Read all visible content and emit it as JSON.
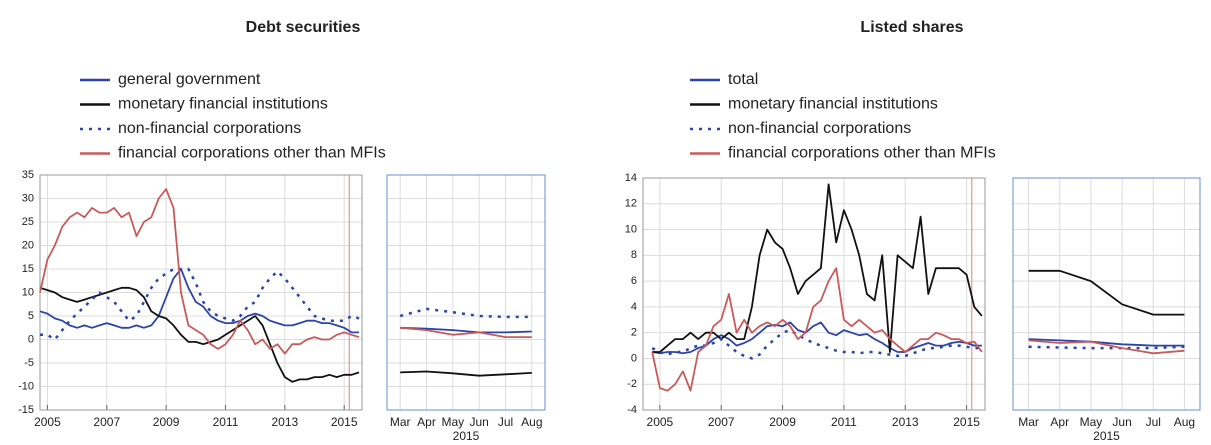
{
  "chart_data": [
    {
      "type": "line",
      "title": "Debt securities",
      "x": [
        2004.75,
        2005,
        2005.25,
        2005.5,
        2005.75,
        2006,
        2006.25,
        2006.5,
        2006.75,
        2007,
        2007.25,
        2007.5,
        2007.75,
        2008,
        2008.25,
        2008.5,
        2008.75,
        2009,
        2009.25,
        2009.5,
        2009.75,
        2010,
        2010.25,
        2010.5,
        2010.75,
        2011,
        2011.25,
        2011.5,
        2011.75,
        2012,
        2012.25,
        2012.5,
        2012.75,
        2013,
        2013.25,
        2013.5,
        2013.75,
        2014,
        2014.25,
        2014.5,
        2014.75,
        2015,
        2015.25,
        2015.5
      ],
      "series": [
        {
          "name": "general government",
          "color": "#2a44a8",
          "dashed": false,
          "values": [
            6,
            5.5,
            4.5,
            4,
            3,
            2.5,
            3,
            2.5,
            3,
            3.5,
            3,
            2.5,
            2.5,
            3,
            2.5,
            3,
            5,
            9,
            13,
            15,
            11,
            8,
            7,
            5,
            4,
            3.5,
            3.5,
            4,
            5,
            5.5,
            5,
            4,
            3.5,
            3,
            3,
            3.5,
            4,
            4,
            3.5,
            3.5,
            3,
            2.5,
            1.5,
            1.5
          ]
        },
        {
          "name": "monetary financial institutions",
          "color": "#111111",
          "dashed": false,
          "values": [
            11,
            10.5,
            10,
            9,
            8.5,
            8,
            8.5,
            9,
            9.5,
            10,
            10.5,
            11,
            11,
            10.5,
            9,
            6,
            5,
            4.5,
            3,
            1,
            -0.5,
            -0.5,
            -1,
            -0.5,
            0,
            1,
            2,
            3,
            4,
            5,
            3,
            -1,
            -5,
            -8,
            -9,
            -8.5,
            -8.5,
            -8,
            -8,
            -7.5,
            -8,
            -7.5,
            -7.5,
            -7
          ]
        },
        {
          "name": "non-financial corporations",
          "color": "#2a44a8",
          "dashed": true,
          "values": [
            1,
            1,
            0,
            2,
            4,
            5.5,
            7,
            8.5,
            10,
            9,
            8,
            6,
            4,
            5,
            8,
            11,
            13,
            14,
            15,
            15,
            15,
            12,
            8,
            6,
            5,
            4.5,
            4,
            5,
            7,
            8,
            11,
            13,
            14.5,
            13,
            11,
            9,
            7,
            5,
            4.5,
            4,
            4,
            4,
            5,
            4.5
          ]
        },
        {
          "name": "financial corporations other than MFIs",
          "color": "#c85a5a",
          "dashed": false,
          "values": [
            10,
            17,
            20,
            24,
            26,
            27,
            26,
            28,
            27,
            27,
            28,
            26,
            27,
            22,
            25,
            26,
            30,
            32,
            28,
            10,
            3,
            2,
            1,
            -1,
            -2,
            -1,
            1,
            4,
            2,
            -1,
            0,
            -2,
            -1,
            -3,
            -1,
            -1,
            0,
            0.5,
            0,
            0,
            1,
            1.5,
            1,
            0.5
          ]
        }
      ],
      "xlim": [
        2004.75,
        2015.6
      ],
      "ylim": [
        -15,
        35
      ],
      "xticks": [
        2005,
        2007,
        2009,
        2011,
        2013,
        2015
      ],
      "yticks": [
        -15,
        -10,
        -5,
        0,
        5,
        10,
        15,
        20,
        25,
        30,
        35
      ],
      "grid": true,
      "highlight_x": [
        2015.17,
        2015.6
      ]
    },
    {
      "type": "line",
      "categories": [
        "Mar",
        "Apr",
        "May",
        "Jun",
        "Jul",
        "Aug"
      ],
      "x_label": "2015",
      "series": [
        {
          "color": "#2a44a8",
          "dashed": false,
          "values": [
            2.5,
            2.3,
            2.0,
            1.5,
            1.5,
            1.7
          ]
        },
        {
          "color": "#111111",
          "dashed": false,
          "values": [
            -7,
            -6.8,
            -7.2,
            -7.7,
            -7.4,
            -7.1
          ]
        },
        {
          "color": "#2a44a8",
          "dashed": true,
          "values": [
            5,
            6.5,
            5.8,
            5,
            4.8,
            4.8
          ]
        },
        {
          "color": "#c85a5a",
          "dashed": false,
          "values": [
            2.5,
            2,
            1,
            1.5,
            0.5,
            0.5
          ]
        }
      ],
      "ylim": [
        -15,
        35
      ],
      "grid": true
    },
    {
      "type": "line",
      "title": "Listed shares",
      "x": [
        2004.75,
        2005,
        2005.25,
        2005.5,
        2005.75,
        2006,
        2006.25,
        2006.5,
        2006.75,
        2007,
        2007.25,
        2007.5,
        2007.75,
        2008,
        2008.25,
        2008.5,
        2008.75,
        2009,
        2009.25,
        2009.5,
        2009.75,
        2010,
        2010.25,
        2010.5,
        2010.75,
        2011,
        2011.25,
        2011.5,
        2011.75,
        2012,
        2012.25,
        2012.5,
        2012.75,
        2013,
        2013.25,
        2013.5,
        2013.75,
        2014,
        2014.25,
        2014.5,
        2014.75,
        2015,
        2015.25,
        2015.5
      ],
      "series": [
        {
          "name": "total",
          "color": "#2a44a8",
          "dashed": false,
          "values": [
            0.5,
            0.4,
            0.5,
            0.5,
            0.4,
            0.5,
            0.8,
            1,
            1.5,
            1.8,
            1.5,
            1,
            1.2,
            1.5,
            2,
            2.5,
            2.6,
            2.5,
            2.8,
            2.2,
            2,
            2.5,
            2.8,
            2,
            1.8,
            2.2,
            2,
            1.8,
            1.9,
            1.5,
            1.2,
            0.8,
            0.5,
            0.5,
            0.8,
            1,
            1.2,
            1,
            1,
            1.2,
            1.3,
            1.2,
            1,
            1
          ]
        },
        {
          "name": "monetary financial institutions",
          "color": "#111111",
          "dashed": false,
          "values": [
            0.5,
            0.5,
            1,
            1.5,
            1.5,
            2,
            1.5,
            2,
            2,
            1.5,
            2,
            1.5,
            1.5,
            4,
            8,
            10,
            9,
            8.5,
            7,
            5,
            6,
            6.5,
            7,
            13.5,
            9,
            11.5,
            10,
            8,
            5,
            4.5,
            8,
            0.5,
            8,
            7.5,
            7,
            11,
            5,
            7,
            7,
            7,
            7,
            6.5,
            4,
            3.3
          ]
        },
        {
          "name": "non-financial corporations",
          "color": "#2a44a8",
          "dashed": true,
          "values": [
            0.8,
            0.5,
            0.3,
            0.5,
            0.5,
            0.8,
            1,
            1,
            1.2,
            1.5,
            1,
            0.5,
            0.2,
            0,
            0.3,
            1,
            1.5,
            2,
            2.2,
            1.8,
            1.5,
            1.2,
            1,
            0.8,
            0.6,
            0.5,
            0.5,
            0.4,
            0.5,
            0.5,
            0.4,
            0.3,
            0.2,
            0.2,
            0.4,
            0.6,
            0.8,
            0.8,
            0.9,
            1,
            1,
            0.9,
            0.8,
            0.8
          ]
        },
        {
          "name": "financial corporations other than MFIs",
          "color": "#c85a5a",
          "dashed": false,
          "values": [
            0.5,
            -2.3,
            -2.5,
            -2,
            -1,
            -2.5,
            0.5,
            1,
            2.5,
            3,
            5,
            2,
            3,
            2,
            2.5,
            2.8,
            2.5,
            3,
            2.5,
            1.5,
            2,
            4,
            4.5,
            6,
            7,
            3,
            2.5,
            3,
            2.5,
            2,
            2.2,
            1.5,
            1,
            0.5,
            1,
            1.5,
            1.5,
            2,
            1.8,
            1.5,
            1.5,
            1.2,
            1.3,
            0.5
          ]
        }
      ],
      "xlim": [
        2004.45,
        2015.6
      ],
      "ylim": [
        -4,
        14
      ],
      "xticks": [
        2005,
        2007,
        2009,
        2011,
        2013,
        2015
      ],
      "yticks": [
        -4,
        -2,
        0,
        2,
        4,
        6,
        8,
        10,
        12,
        14
      ],
      "grid": true,
      "highlight_x": [
        2015.17,
        2015.6
      ]
    },
    {
      "type": "line",
      "categories": [
        "Mar",
        "Apr",
        "May",
        "Jun",
        "Jul",
        "Aug"
      ],
      "x_label": "2015",
      "series": [
        {
          "color": "#2a44a8",
          "dashed": false,
          "values": [
            1.5,
            1.4,
            1.3,
            1.1,
            1.0,
            1.0
          ]
        },
        {
          "color": "#111111",
          "dashed": false,
          "values": [
            6.8,
            6.8,
            6,
            4.2,
            3.4,
            3.4
          ]
        },
        {
          "color": "#2a44a8",
          "dashed": true,
          "values": [
            0.9,
            0.85,
            0.8,
            0.8,
            0.8,
            0.9
          ]
        },
        {
          "color": "#c85a5a",
          "dashed": false,
          "values": [
            1.4,
            1.2,
            1.3,
            0.8,
            0.4,
            0.6
          ]
        }
      ],
      "ylim": [
        -4,
        14
      ],
      "grid": true
    }
  ]
}
